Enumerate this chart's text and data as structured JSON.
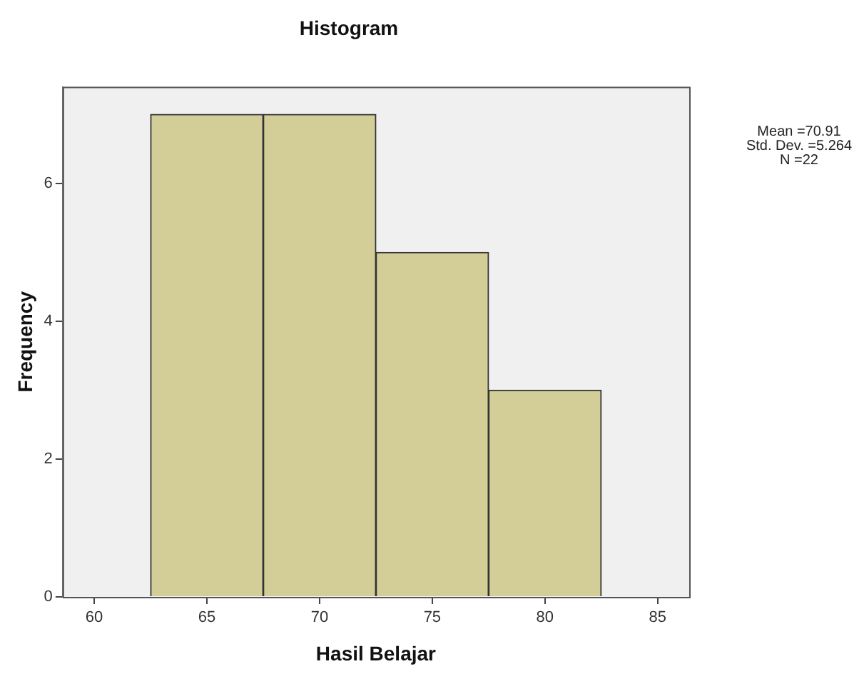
{
  "chart_data": {
    "type": "histogram",
    "title": "Histogram",
    "xlabel": "Hasil Belajar",
    "ylabel": "Frequency",
    "bins": [
      62.5,
      67.5,
      72.5,
      77.5,
      82.5
    ],
    "values": [
      7,
      7,
      5,
      3
    ],
    "color": "#d3ce97",
    "xlim": [
      58.6,
      86.4
    ],
    "xticks": [
      60,
      65,
      70,
      75,
      80,
      85
    ],
    "ylim": [
      0,
      7.4
    ],
    "yticks": [
      0,
      2,
      4,
      6
    ],
    "grid": false,
    "legend": false,
    "annotations": [
      "Mean =70.91",
      "Std. Dev. =5.264",
      "N =22"
    ]
  }
}
